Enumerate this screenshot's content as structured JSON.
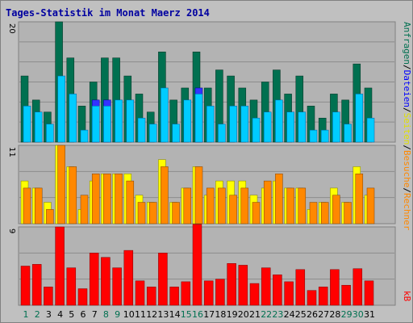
{
  "title": "Tages-Statistik im Monat Maerz 2014",
  "colors": {
    "background": "#c0c0c0",
    "panel": "#b3b3b3",
    "panel_border": "#808080",
    "grid": "#8c8c8c",
    "title": "#0000a0",
    "anfragen": "#007050",
    "dateien": "#00ccff",
    "seiten": "#ffff00",
    "besuche": "#ff8800",
    "rechner": "#ff8800",
    "kb": "#ff0000",
    "weekday_text": "#000000",
    "weekend_text": "#007050",
    "dateien_text": "#0000ff",
    "kb_text": "#ff0000"
  },
  "right_labels": {
    "anfragen": "Anfragen",
    "dateien": "Dateien",
    "seiten": "Seiten",
    "besuche": "Besuche",
    "rechner": "Rechner",
    "kb": "kB",
    "sep": "/"
  },
  "chart_data": {
    "type": "bar",
    "categories": [
      "1",
      "2",
      "3",
      "4",
      "5",
      "6",
      "7",
      "8",
      "9",
      "10",
      "11",
      "12",
      "13",
      "14",
      "15",
      "16",
      "17",
      "18",
      "19",
      "20",
      "21",
      "22",
      "23",
      "24",
      "25",
      "26",
      "27",
      "28",
      "29",
      "30",
      "31"
    ],
    "weekend_days": [
      "1",
      "2",
      "8",
      "9",
      "15",
      "16",
      "22",
      "23",
      "29",
      "30"
    ],
    "panels": [
      {
        "name": "requests-files",
        "ymax": 20,
        "ytick_label": "20",
        "series": [
          {
            "name": "Anfragen",
            "values": [
              11,
              7,
              5,
              20,
              14,
              6,
              10,
              14,
              14,
              11,
              8,
              5,
              15,
              7,
              9,
              15,
              9,
              12,
              11,
              9,
              7,
              10,
              12,
              8,
              11,
              6,
              4,
              8,
              7,
              13,
              9
            ]
          },
          {
            "name": "Dateien",
            "values": [
              6,
              5,
              3,
              11,
              8,
              2,
              6,
              6,
              7,
              7,
              4,
              3,
              9,
              3,
              7,
              8,
              6,
              3,
              6,
              6,
              4,
              5,
              7,
              5,
              5,
              2,
              2,
              5,
              3,
              8,
              4
            ]
          },
          {
            "name": "Dateien-marked",
            "values": [
              0,
              0,
              0,
              0,
              0,
              0,
              7,
              7,
              0,
              0,
              0,
              0,
              0,
              0,
              0,
              9,
              0,
              0,
              0,
              0,
              0,
              0,
              0,
              0,
              0,
              0,
              0,
              0,
              0,
              0,
              0
            ]
          }
        ]
      },
      {
        "name": "pages-visits",
        "ymax": 11,
        "ytick_label": "11",
        "series": [
          {
            "name": "Seiten",
            "values": [
              6,
              5,
              3,
              11,
              8,
              2,
              6,
              7,
              7,
              7,
              4,
              3,
              9,
              3,
              5,
              8,
              4,
              6,
              6,
              6,
              4,
              5,
              6,
              5,
              5,
              2,
              3,
              5,
              3,
              8,
              4
            ]
          },
          {
            "name": "Besuche",
            "values": [
              5,
              5,
              2,
              11,
              8,
              4,
              7,
              7,
              7,
              6,
              3,
              3,
              8,
              3,
              5,
              8,
              5,
              5,
              4,
              5,
              3,
              6,
              7,
              5,
              5,
              3,
              3,
              4,
              3,
              7,
              5
            ]
          }
        ]
      },
      {
        "name": "kb",
        "ymax": 9,
        "ytick_label": "9",
        "series": [
          {
            "name": "kB",
            "values": [
              4.5,
              4.7,
              2.1,
              9.0,
              4.3,
              1.9,
              6.0,
              5.5,
              4.3,
              6.3,
              2.8,
              2.1,
              6.0,
              2.1,
              2.7,
              9.3,
              2.8,
              3.0,
              4.8,
              4.6,
              2.5,
              4.3,
              3.5,
              2.7,
              4.1,
              1.7,
              2.1,
              4.1,
              2.3,
              4.2,
              2.8
            ]
          }
        ]
      }
    ]
  }
}
